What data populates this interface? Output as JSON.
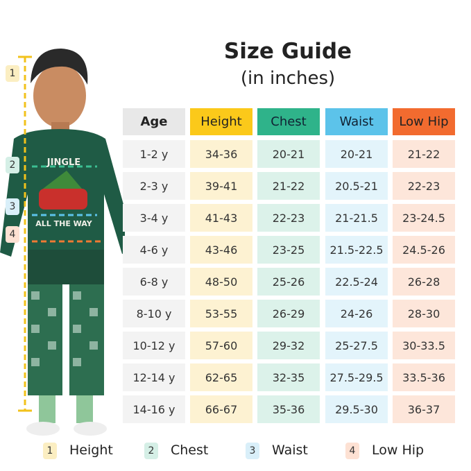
{
  "header": {
    "title": "Size Guide",
    "subtitle": "(in inches)"
  },
  "table": {
    "headers": [
      "Age",
      "Height",
      "Chest",
      "Waist",
      "Low Hip"
    ],
    "rows": [
      [
        "1-2 y",
        "34-36",
        "20-21",
        "20-21",
        "21-22"
      ],
      [
        "2-3 y",
        "39-41",
        "21-22",
        "20.5-21",
        "22-23"
      ],
      [
        "3-4 y",
        "41-43",
        "22-23",
        "21-21.5",
        "23-24.5"
      ],
      [
        "4-6 y",
        "43-46",
        "23-25",
        "21.5-22.5",
        "24.5-26"
      ],
      [
        "6-8 y",
        "48-50",
        "25-26",
        "22.5-24",
        "26-28"
      ],
      [
        "8-10 y",
        "53-55",
        "26-29",
        "24-26",
        "28-30"
      ],
      [
        "10-12 y",
        "57-60",
        "29-32",
        "25-27.5",
        "30-33.5"
      ],
      [
        "12-14 y",
        "62-65",
        "32-35",
        "27.5-29.5",
        "33.5-36"
      ],
      [
        "14-16 y",
        "66-67",
        "35-36",
        "29.5-30",
        "36-37"
      ]
    ]
  },
  "figure": {
    "markers": [
      "1",
      "2",
      "3",
      "4"
    ],
    "shirt_text": [
      "JINGLE",
      "ALL THE WAY"
    ]
  },
  "legend": [
    {
      "number": "1",
      "label": "Height"
    },
    {
      "number": "2",
      "label": "Chest"
    },
    {
      "number": "3",
      "label": "Waist"
    },
    {
      "number": "4",
      "label": "Low Hip"
    }
  ]
}
